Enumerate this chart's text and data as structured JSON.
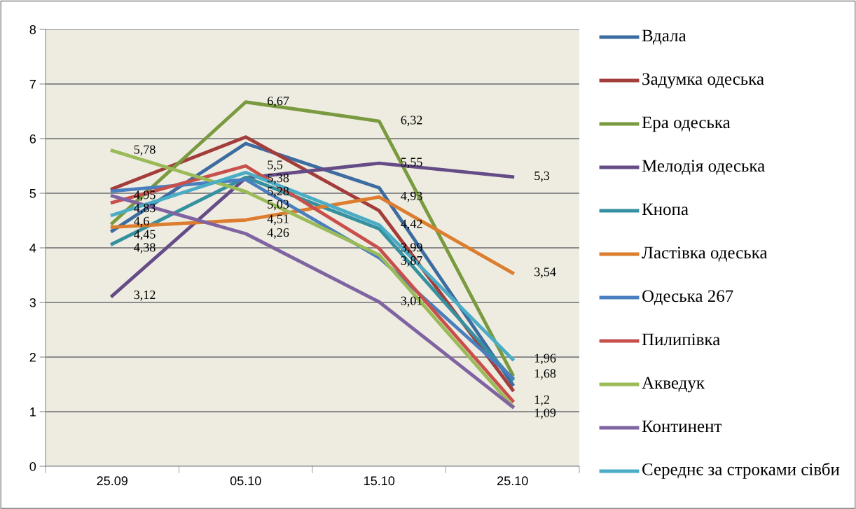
{
  "chart_data": {
    "type": "line",
    "categories": [
      "25.09",
      "05.10",
      "15.10",
      "25.10"
    ],
    "ylim": [
      0,
      8
    ],
    "yticks": [
      0,
      1,
      2,
      3,
      4,
      5,
      6,
      7,
      8
    ],
    "grid": "y",
    "legend": "right",
    "marker": "none",
    "line_style": "solid",
    "series": [
      {
        "name": "Вдала",
        "color": "#3c6ca0",
        "values": [
          4.31,
          5.91,
          5.1,
          1.5
        ]
      },
      {
        "name": "Задумка одеська",
        "color": "#a33d3b",
        "values": [
          5.08,
          6.03,
          4.68,
          1.4
        ]
      },
      {
        "name": "Ера одеська",
        "color": "#7a9a3f",
        "values": [
          4.45,
          6.67,
          6.32,
          1.68
        ],
        "value_labels": [
          "4,45",
          "6,67",
          "6,32",
          "1,68"
        ]
      },
      {
        "name": "Мелодія одеська",
        "color": "#654c87",
        "values": [
          3.12,
          5.28,
          5.55,
          5.3
        ],
        "value_labels": [
          "3,12",
          "5,28",
          "5,55",
          "5,3"
        ]
      },
      {
        "name": "Кнопа",
        "color": "#35909f",
        "values": [
          4.07,
          5.29,
          4.35,
          1.6
        ]
      },
      {
        "name": "Ластівка одеська",
        "color": "#dc7d2f",
        "values": [
          4.38,
          4.51,
          4.93,
          3.54
        ],
        "value_labels": [
          "4,38",
          "4,51",
          "4,93",
          "3,54"
        ]
      },
      {
        "name": "Одеська 267",
        "color": "#4a7fbf",
        "values": [
          5.04,
          5.25,
          3.82,
          1.62
        ]
      },
      {
        "name": "Пилипівка",
        "color": "#c8504c",
        "values": [
          4.83,
          5.5,
          3.99,
          1.2
        ],
        "value_labels": [
          "4,83",
          "5,5",
          "3,99",
          "1,2"
        ]
      },
      {
        "name": "Акведук",
        "color": "#9bbb59",
        "values": [
          5.78,
          5.03,
          3.87,
          1.1
        ],
        "value_labels": [
          "5,78",
          "5,03",
          "3,87",
          null
        ]
      },
      {
        "name": "Континент",
        "color": "#8064a2",
        "values": [
          4.95,
          4.26,
          3.01,
          1.09
        ],
        "value_labels": [
          "4,95",
          "4,26",
          "3,01",
          "1,09"
        ]
      },
      {
        "name": "Середнє за строками сівби",
        "color": "#4bacc6",
        "values": [
          4.6,
          5.38,
          4.42,
          1.96
        ],
        "value_labels": [
          "4,6",
          "5,38",
          "4,42",
          "1,96"
        ]
      }
    ]
  }
}
